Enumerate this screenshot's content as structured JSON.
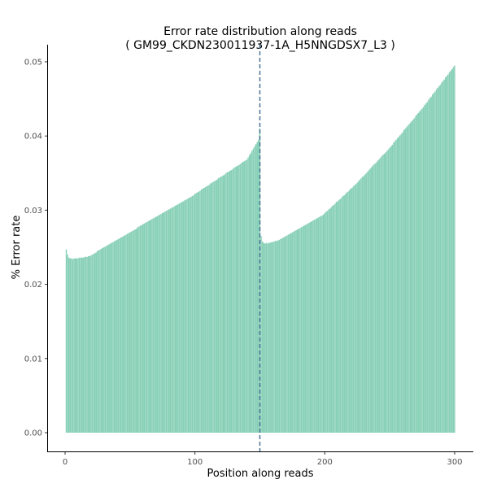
{
  "chart_data": {
    "type": "bar",
    "title": "Error rate distribution along reads",
    "subtitle": "( GM99_CKDN230011937-1A_H5NNGDSX7_L3 )",
    "xlabel": "Position along reads",
    "ylabel": "% Error rate",
    "xlim": [
      0,
      300
    ],
    "ylim": [
      0,
      0.05
    ],
    "xticks": [
      "0",
      "100",
      "200",
      "300"
    ],
    "yticks": [
      "0.00",
      "0.01",
      "0.02",
      "0.03",
      "0.04",
      "0.05"
    ],
    "grid": false,
    "bar_color": "#86cfb6",
    "vline": {
      "x": 150.5,
      "style": "dashed",
      "color": "#4a7396"
    },
    "x_start": 1,
    "values": [
      0.0247,
      0.024,
      0.0236,
      0.0235,
      0.0235,
      0.0234,
      0.0235,
      0.0235,
      0.0235,
      0.0235,
      0.0236,
      0.0236,
      0.0236,
      0.0236,
      0.0237,
      0.0237,
      0.0237,
      0.0238,
      0.0238,
      0.0239,
      0.024,
      0.0241,
      0.0242,
      0.0243,
      0.0245,
      0.0246,
      0.0247,
      0.0248,
      0.0249,
      0.025,
      0.0251,
      0.0252,
      0.0253,
      0.0254,
      0.0255,
      0.0256,
      0.0257,
      0.0258,
      0.0259,
      0.026,
      0.0261,
      0.0262,
      0.0263,
      0.0264,
      0.0265,
      0.0266,
      0.0267,
      0.0268,
      0.0269,
      0.027,
      0.0271,
      0.0272,
      0.0273,
      0.0274,
      0.0275,
      0.0277,
      0.0278,
      0.0279,
      0.028,
      0.0281,
      0.0282,
      0.0283,
      0.0284,
      0.0285,
      0.0286,
      0.0287,
      0.0288,
      0.0289,
      0.029,
      0.0291,
      0.0292,
      0.0293,
      0.0294,
      0.0295,
      0.0296,
      0.0297,
      0.0298,
      0.0299,
      0.03,
      0.0301,
      0.0302,
      0.0303,
      0.0304,
      0.0305,
      0.0306,
      0.0307,
      0.0308,
      0.0309,
      0.031,
      0.0311,
      0.0312,
      0.0313,
      0.0314,
      0.0315,
      0.0316,
      0.0317,
      0.0318,
      0.0319,
      0.032,
      0.0322,
      0.0323,
      0.0324,
      0.0325,
      0.0326,
      0.0328,
      0.0329,
      0.033,
      0.0331,
      0.0332,
      0.0333,
      0.0334,
      0.0336,
      0.0337,
      0.0338,
      0.0339,
      0.034,
      0.0341,
      0.0343,
      0.0344,
      0.0345,
      0.0346,
      0.0347,
      0.0348,
      0.035,
      0.0351,
      0.0352,
      0.0353,
      0.0354,
      0.0355,
      0.0357,
      0.0358,
      0.0359,
      0.036,
      0.0361,
      0.0362,
      0.0364,
      0.0365,
      0.0366,
      0.0367,
      0.0368,
      0.0371,
      0.0374,
      0.0377,
      0.038,
      0.0383,
      0.0386,
      0.0389,
      0.0392,
      0.0395,
      0.041,
      0.0265,
      0.0258,
      0.0256,
      0.0255,
      0.0256,
      0.0255,
      0.0256,
      0.0256,
      0.0257,
      0.0257,
      0.0258,
      0.0258,
      0.0259,
      0.0259,
      0.026,
      0.0261,
      0.0262,
      0.0263,
      0.0264,
      0.0265,
      0.0266,
      0.0267,
      0.0268,
      0.0269,
      0.027,
      0.0271,
      0.0272,
      0.0273,
      0.0274,
      0.0275,
      0.0276,
      0.0277,
      0.0278,
      0.0279,
      0.028,
      0.0281,
      0.0282,
      0.0283,
      0.0284,
      0.0285,
      0.0286,
      0.0287,
      0.0288,
      0.0289,
      0.029,
      0.0291,
      0.0292,
      0.0293,
      0.0294,
      0.0296,
      0.0298,
      0.0299,
      0.0301,
      0.0302,
      0.0304,
      0.0306,
      0.0307,
      0.0309,
      0.0311,
      0.0312,
      0.0314,
      0.0315,
      0.0317,
      0.0319,
      0.032,
      0.0322,
      0.0324,
      0.0325,
      0.0327,
      0.0329,
      0.033,
      0.0332,
      0.0334,
      0.0335,
      0.0337,
      0.0339,
      0.0341,
      0.0343,
      0.0345,
      0.0346,
      0.0348,
      0.035,
      0.0352,
      0.0354,
      0.0356,
      0.0358,
      0.036,
      0.0362,
      0.0363,
      0.0365,
      0.0367,
      0.0369,
      0.0371,
      0.0373,
      0.0375,
      0.0376,
      0.0378,
      0.038,
      0.0382,
      0.0384,
      0.0386,
      0.0388,
      0.0391,
      0.0393,
      0.0395,
      0.0397,
      0.0399,
      0.0401,
      0.0403,
      0.0405,
      0.0408,
      0.041,
      0.0412,
      0.0414,
      0.0416,
      0.0418,
      0.042,
      0.0422,
      0.0424,
      0.0427,
      0.0429,
      0.0431,
      0.0433,
      0.0435,
      0.0437,
      0.0439,
      0.0442,
      0.0444,
      0.0446,
      0.0449,
      0.0451,
      0.0453,
      0.0456,
      0.0458,
      0.046,
      0.0463,
      0.0465,
      0.0467,
      0.0469,
      0.0472,
      0.0474,
      0.0476,
      0.0479,
      0.0481,
      0.0483,
      0.0486,
      0.0488,
      0.049,
      0.0493,
      0.0495
    ]
  }
}
